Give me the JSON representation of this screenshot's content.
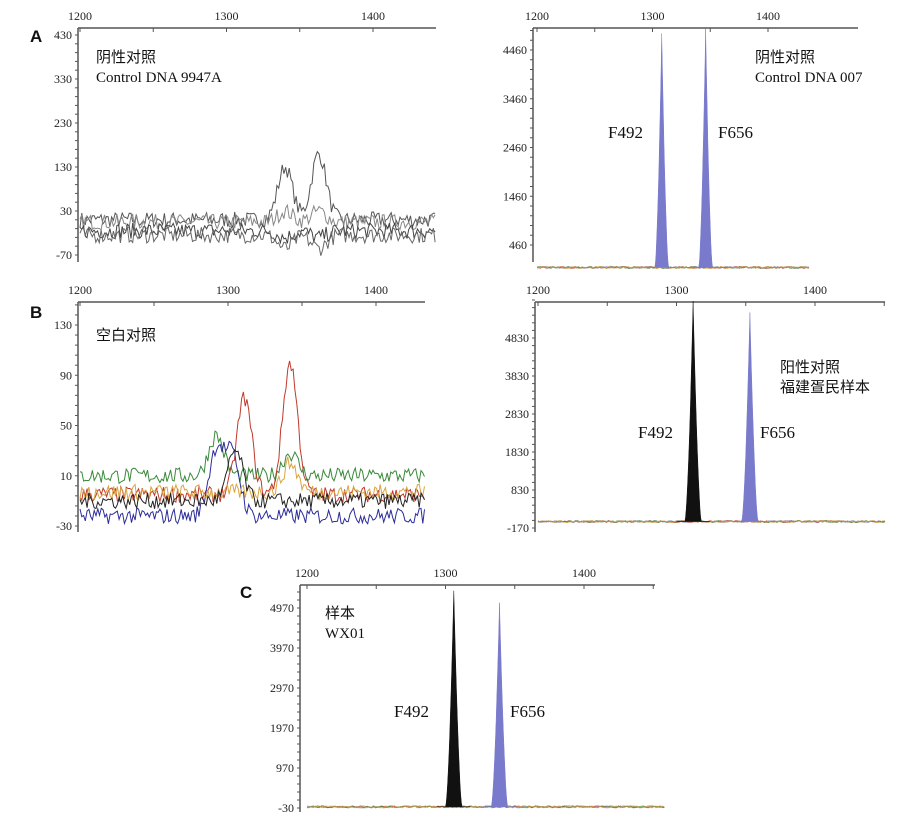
{
  "chart_data": [
    {
      "type": "line",
      "panel": "A",
      "caption": [
        "阴性对照",
        "Control DNA 9947A"
      ],
      "x_ticks": [
        1200,
        1300,
        1400
      ],
      "y_ticks": [
        430,
        330,
        230,
        130,
        30,
        -70
      ],
      "xlim": [
        1200,
        1443
      ],
      "ylim": [
        -75,
        440
      ],
      "traces": [
        {
          "color": "#555555",
          "baseline": 10,
          "peaks": [
            [
              1340,
              130
            ],
            [
              1363,
              160
            ]
          ]
        },
        {
          "color": "#888888",
          "baseline": 5,
          "peaks": [
            [
              1340,
              30
            ],
            [
              1363,
              30
            ]
          ]
        },
        {
          "color": "#444444",
          "baseline": -15,
          "peaks": [
            [
              1340,
              -30
            ],
            [
              1363,
              -30
            ]
          ]
        },
        {
          "color": "#666666",
          "baseline": -25,
          "peaks": [
            [
              1340,
              -55
            ],
            [
              1363,
              -55
            ]
          ]
        }
      ],
      "peak_labels": []
    },
    {
      "type": "area",
      "panel": "A",
      "caption": [
        "阴性对照",
        "Control DNA 007"
      ],
      "x_ticks": [
        1200,
        1300,
        1400
      ],
      "y_ticks": [
        4460,
        3460,
        2460,
        1460,
        460
      ],
      "xlim": [
        1200,
        1436
      ],
      "ylim": [
        -100,
        5000
      ],
      "peaks": [
        {
          "label": "F492",
          "x": 1308,
          "height": 4800,
          "color": "#7a7acc"
        },
        {
          "label": "F656",
          "x": 1346,
          "height": 4900,
          "color": "#7a7acc"
        }
      ]
    },
    {
      "type": "line",
      "panel": "B",
      "caption": [
        "空白对照"
      ],
      "x_ticks": [
        1200,
        1300,
        1400
      ],
      "y_ticks": [
        130,
        90,
        50,
        10,
        -30
      ],
      "xlim": [
        1200,
        1433
      ],
      "ylim": [
        -35,
        148
      ],
      "traces": [
        {
          "color": "#3a8a3a",
          "baseline": 10,
          "peaks": [
            [
              1292,
              42
            ],
            [
              1342,
              28
            ]
          ]
        },
        {
          "color": "#c0392b",
          "baseline": -5,
          "peaks": [
            [
              1311,
              72
            ],
            [
              1342,
              100
            ]
          ]
        },
        {
          "color": "#2c2c9c",
          "baseline": -22,
          "peaks": [
            [
              1292,
              30
            ],
            [
              1303,
              25
            ]
          ]
        },
        {
          "color": "#d9a441",
          "baseline": -3,
          "peaks": [
            [
              1342,
              20
            ]
          ]
        },
        {
          "color": "#222222",
          "baseline": -10,
          "peaks": [
            [
              1305,
              30
            ]
          ]
        }
      ]
    },
    {
      "type": "area",
      "panel": "B",
      "caption": [
        "阳性对照",
        "福建疍民样本"
      ],
      "x_ticks": [
        1200,
        1300,
        1400
      ],
      "y_ticks": [
        4830,
        3830,
        2830,
        1830,
        830,
        -170
      ],
      "xlim": [
        1200,
        1451
      ],
      "ylim": [
        -250,
        5850
      ],
      "peaks": [
        {
          "label": "F492",
          "x": 1312,
          "height": 5800,
          "color": "#111111"
        },
        {
          "label": "F656",
          "x": 1353,
          "height": 5500,
          "color": "#7a7acc"
        }
      ]
    },
    {
      "type": "area",
      "panel": "C",
      "caption": [
        "样本",
        "WX01"
      ],
      "x_ticks": [
        1200,
        1300,
        1400
      ],
      "y_ticks": [
        4970,
        3970,
        2970,
        1970,
        970,
        -30
      ],
      "xlim": [
        1200,
        1459
      ],
      "ylim": [
        -100,
        5450
      ],
      "peaks": [
        {
          "label": "F492",
          "x": 1306,
          "height": 5400,
          "color": "#111111"
        },
        {
          "label": "F656",
          "x": 1339,
          "height": 5100,
          "color": "#7a7acc"
        }
      ]
    }
  ]
}
